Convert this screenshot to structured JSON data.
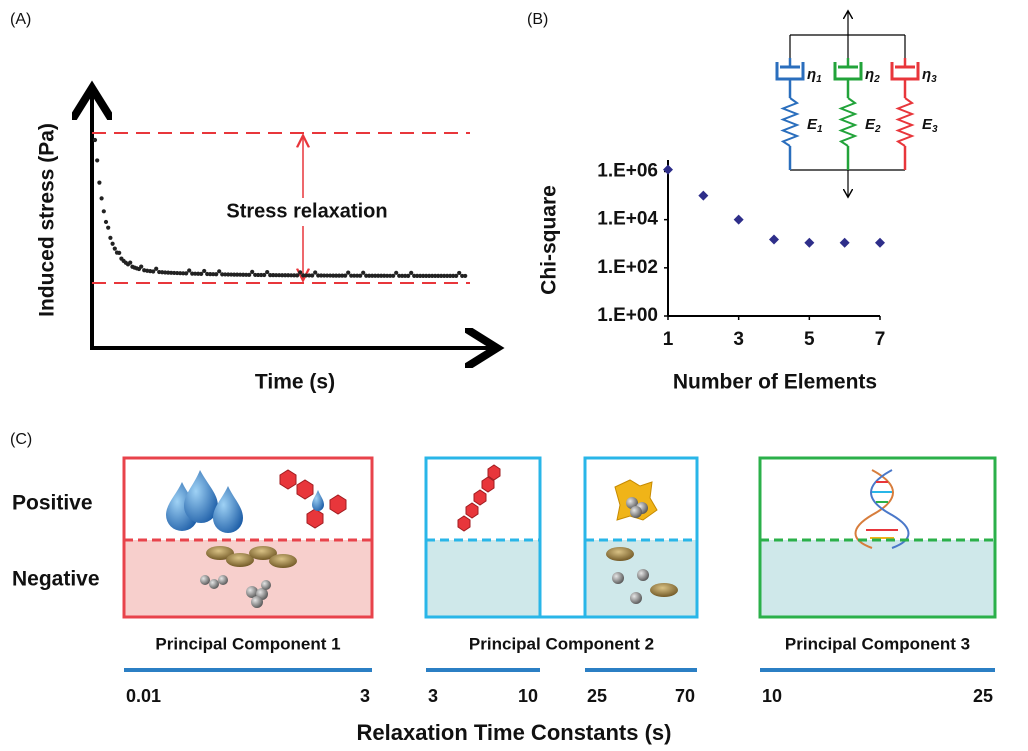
{
  "panel_labels": [
    "(A)",
    "(B)",
    "(C)"
  ],
  "panel_a": {
    "y_label": "Induced stress (Pa)",
    "x_label": "Time (s)",
    "annotation": "Stress relaxation"
  },
  "chart_data": {
    "type": "scatter",
    "x_label": "Number of Elements",
    "y_label": "Chi-square",
    "x": [
      1,
      2,
      3,
      4,
      5,
      6,
      7
    ],
    "values": [
      1200000,
      100000,
      10000,
      1500,
      1100,
      1100,
      1100
    ],
    "color": "#2e2e8a",
    "log_y": true,
    "xlim": [
      1,
      7
    ],
    "xticks": [
      1,
      3,
      5,
      7
    ],
    "ylim": [
      1,
      3000000
    ],
    "yticks": [
      {
        "value": 1,
        "label": "1.E+00"
      },
      {
        "value": 100,
        "label": "1.E+02"
      },
      {
        "value": 10000,
        "label": "1.E+04"
      },
      {
        "value": 1000000,
        "label": "1.E+06"
      }
    ]
  },
  "circuit": {
    "branches": [
      {
        "color": "#2a6ebd",
        "dashpot": {
          "symbol": "η",
          "subscript": "1"
        },
        "spring": {
          "symbol": "E",
          "subscript": "1"
        }
      },
      {
        "color": "#22a33a",
        "dashpot": {
          "symbol": "η",
          "subscript": "2"
        },
        "spring": {
          "symbol": "E",
          "subscript": "2"
        }
      },
      {
        "color": "#e8363b",
        "dashpot": {
          "symbol": "η",
          "subscript": "3"
        },
        "spring": {
          "symbol": "E",
          "subscript": "3"
        }
      }
    ]
  },
  "panel_c": {
    "row_labels": [
      "Positive",
      "Negative"
    ],
    "components": [
      {
        "name": "Principal Component 1",
        "color": "#e8434b",
        "fill": "#f7cfcc",
        "ranges": [
          [
            0.01,
            3
          ]
        ]
      },
      {
        "name": "Principal Component 2",
        "color": "#29b6e8",
        "fill": "#cfe8ea",
        "ranges": [
          [
            3,
            10
          ],
          [
            25,
            70
          ]
        ]
      },
      {
        "name": "Principal Component 3",
        "color": "#2bb04a",
        "fill": "#cfe8ea",
        "ranges": [
          [
            10,
            25
          ]
        ]
      }
    ],
    "axis_label": "Relaxation Time Constants (s)"
  }
}
